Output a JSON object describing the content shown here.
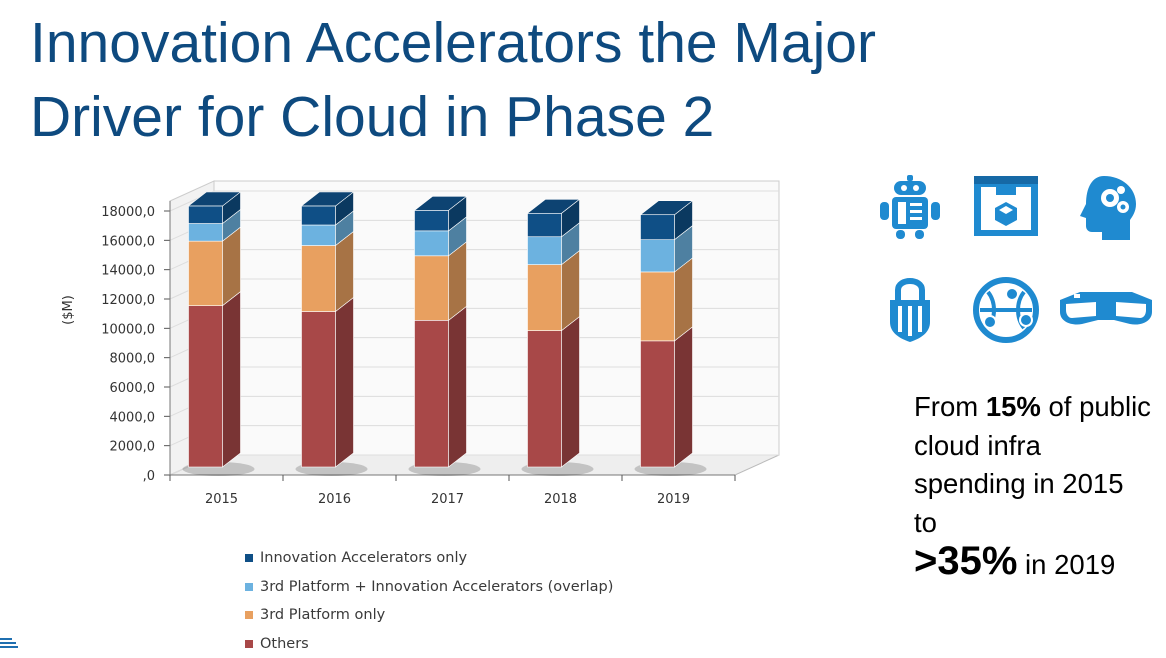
{
  "slide": {
    "title": "Innovation Accelerators the Major Driver for Cloud in Phase 2"
  },
  "callout": {
    "from_text": "From ",
    "from_pct": "15%",
    "of_text": " of public cloud infra spending in 2015 to",
    "to_pct": ">35%",
    "in_text": " in 2019"
  },
  "icons": [
    "robot-icon",
    "3d-printer-icon",
    "brain-gears-icon",
    "security-lock-icon",
    "iot-network-icon",
    "smart-glasses-icon"
  ],
  "colors": {
    "title": "#0e4a7f",
    "icon": "#1f8ad0"
  },
  "chart_data": {
    "type": "bar",
    "stacked": true,
    "three_d": true,
    "categories": [
      "2015",
      "2016",
      "2017",
      "2018",
      "2019"
    ],
    "ylabel": "($M)",
    "xlabel": "",
    "ylim": [
      0,
      18000
    ],
    "yticks": [
      ",0",
      "2000,0",
      "4000,0",
      "6000,0",
      "8000,0",
      "10000,0",
      "12000,0",
      "14000,0",
      "16000,0",
      "18000,0"
    ],
    "grid": true,
    "legend_position": "bottom",
    "series": [
      {
        "name": "Others",
        "color": "#a84848",
        "values": [
          11000,
          10600,
          10000,
          9300,
          8600
        ]
      },
      {
        "name": "3rd Platform only",
        "color": "#e8a060",
        "values": [
          4400,
          4500,
          4400,
          4500,
          4700
        ]
      },
      {
        "name": "3rd Platform + Innovation Accelerators (overlap)",
        "color": "#6cb2e0",
        "values": [
          1200,
          1400,
          1700,
          1900,
          2200
        ]
      },
      {
        "name": "Innovation Accelerators only",
        "color": "#0f4f86",
        "values": [
          1200,
          1300,
          1400,
          1600,
          1700
        ]
      }
    ],
    "legend_order": [
      "Innovation Accelerators only",
      "3rd Platform + Innovation Accelerators (overlap)",
      "3rd Platform only",
      "Others"
    ]
  }
}
